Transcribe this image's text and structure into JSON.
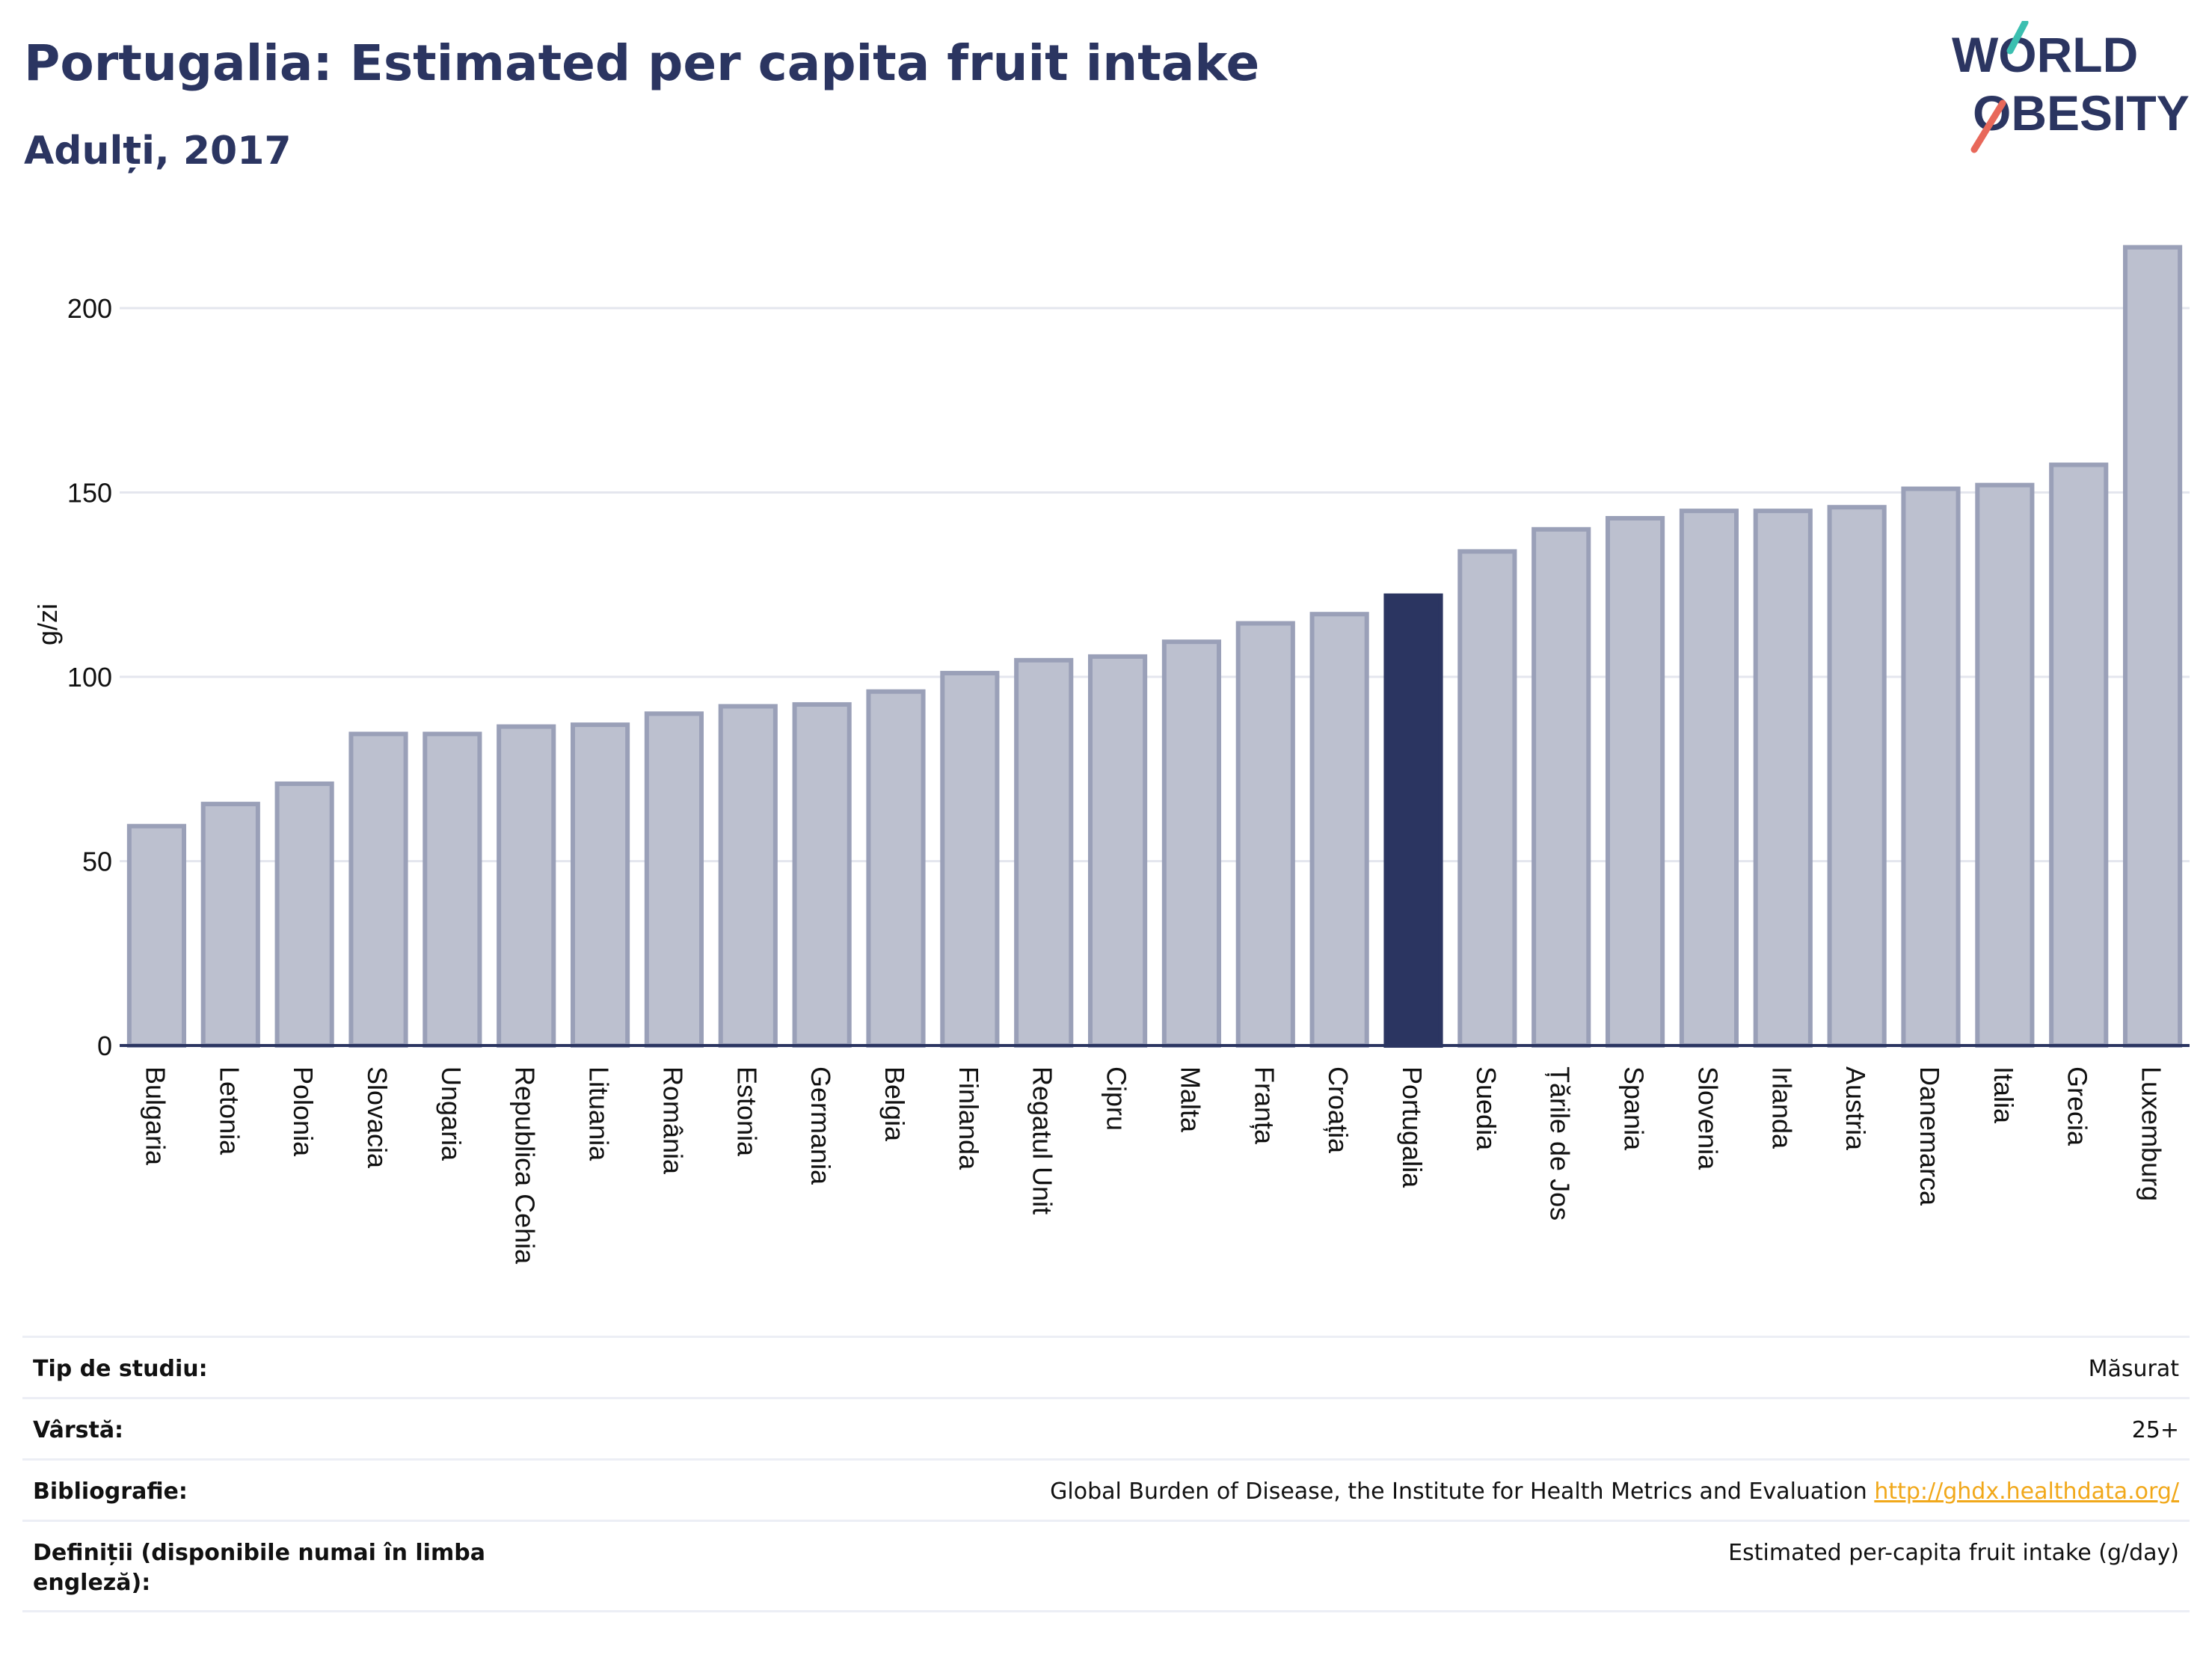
{
  "header": {
    "title": "Portugalia: Estimated per capita fruit intake",
    "subtitle": "Adulți, 2017"
  },
  "logo": {
    "line1": "WORLD",
    "line2": "OBESITY",
    "accent_teal": "#3bbfb0",
    "accent_red": "#e8685a"
  },
  "colors": {
    "bar": "#bcc0cf",
    "bar_border": "#9aa0b8",
    "highlight": "#2b3561",
    "axis": "#2b3561",
    "grid": "#e4e6ee"
  },
  "chart_data": {
    "type": "bar",
    "ylabel": "g/zi",
    "ylim": [
      0,
      220
    ],
    "yticks": [
      0,
      50,
      100,
      150,
      200
    ],
    "grid": true,
    "highlight": "Portugalia",
    "categories": [
      "Bulgaria",
      "Letonia",
      "Polonia",
      "Slovacia",
      "Ungaria",
      "Republica Cehia",
      "Lituania",
      "România",
      "Estonia",
      "Germania",
      "Belgia",
      "Finlanda",
      "Regatul Unit",
      "Cipru",
      "Malta",
      "Franța",
      "Croația",
      "Portugalia",
      "Suedia",
      "Țările de Jos",
      "Spania",
      "Slovenia",
      "Irlanda",
      "Austria",
      "Danemarca",
      "Italia",
      "Grecia",
      "Luxemburg"
    ],
    "values": [
      59.5,
      65.5,
      71,
      84.5,
      84.5,
      86.5,
      87,
      90,
      92,
      92.5,
      96,
      101,
      104.5,
      105.5,
      109.5,
      114.5,
      117,
      122,
      134,
      140,
      143,
      145,
      145,
      146,
      151,
      152,
      157.5,
      216.5
    ]
  },
  "meta": [
    {
      "label": "Tip de studiu:",
      "value": "Măsurat"
    },
    {
      "label": "Vârstă:",
      "value": "25+"
    },
    {
      "label": "Bibliografie:",
      "value": "Global Burden of Disease, the Institute for Health Metrics and Evaluation",
      "link": "http://ghdx.healthdata.org/"
    },
    {
      "label": "Definiții (disponibile numai în limba engleză):",
      "value": "Estimated per-capita fruit intake (g/day)"
    }
  ]
}
